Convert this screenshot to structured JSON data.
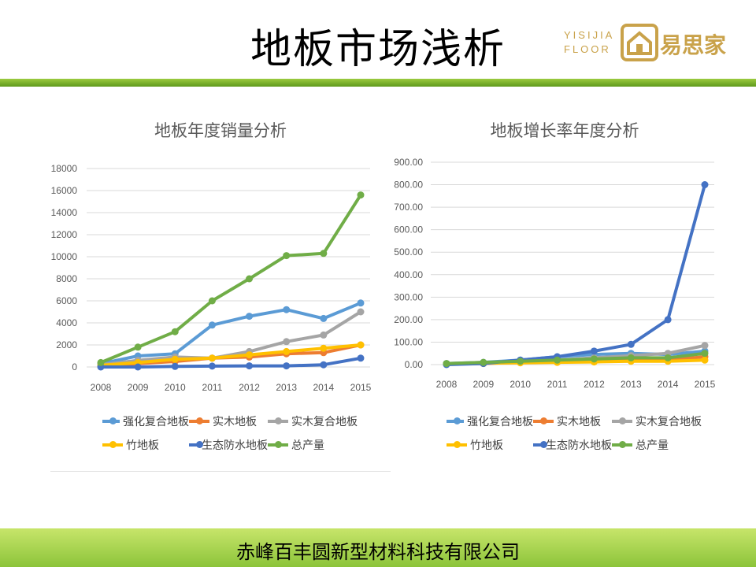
{
  "header": {
    "title": "地板市场浅析",
    "logo_en_line1": "YISIJIA",
    "logo_en_line2": "FLOOR",
    "logo_cn": "易思家"
  },
  "footer": {
    "company": "赤峰百丰圆新型材料科技有限公司"
  },
  "colors": {
    "accent_green": "#7ab22f",
    "logo_gold": "#c9a24a"
  },
  "chart_data": [
    {
      "type": "line",
      "title": "地板年度销量分析",
      "x": [
        "2008",
        "2009",
        "2010",
        "2011",
        "2012",
        "2013",
        "2014",
        "2015"
      ],
      "ylim": [
        0,
        18000
      ],
      "yticks": [
        "0",
        "2000",
        "4000",
        "6000",
        "8000",
        "10000",
        "12000",
        "14000",
        "16000",
        "18000"
      ],
      "legend_position": "bottom",
      "grid": true,
      "series": [
        {
          "name": "强化复合地板",
          "color": "#5b9bd5",
          "values": [
            300,
            1000,
            1200,
            3800,
            4600,
            5200,
            4400,
            5800
          ]
        },
        {
          "name": "实木地板",
          "color": "#ed7d31",
          "values": [
            100,
            300,
            500,
            800,
            900,
            1200,
            1300,
            2000
          ]
        },
        {
          "name": "实木复合地板",
          "color": "#a5a5a5",
          "values": [
            200,
            600,
            900,
            800,
            1400,
            2300,
            2900,
            5000
          ]
        },
        {
          "name": "竹地板",
          "color": "#ffc000",
          "values": [
            150,
            400,
            700,
            800,
            1100,
            1400,
            1700,
            2000
          ]
        },
        {
          "name": "生态防水地板",
          "color": "#4472c4",
          "values": [
            0,
            0,
            50,
            80,
            100,
            100,
            200,
            800
          ]
        },
        {
          "name": "总产量",
          "color": "#70ad47",
          "values": [
            400,
            1800,
            3200,
            6000,
            8000,
            10100,
            10300,
            15600
          ]
        }
      ]
    },
    {
      "type": "line",
      "title": "地板增长率年度分析",
      "x": [
        "2008",
        "2009",
        "2010",
        "2011",
        "2012",
        "2013",
        "2014",
        "2015"
      ],
      "ylim": [
        0,
        900
      ],
      "yticks": [
        "0.00",
        "100.00",
        "200.00",
        "300.00",
        "400.00",
        "500.00",
        "600.00",
        "700.00",
        "800.00",
        "900.00"
      ],
      "legend_position": "bottom",
      "grid": true,
      "series": [
        {
          "name": "强化复合地板",
          "color": "#5b9bd5",
          "values": [
            5,
            10,
            20,
            35,
            45,
            50,
            45,
            60
          ]
        },
        {
          "name": "实木地板",
          "color": "#ed7d31",
          "values": [
            3,
            5,
            10,
            12,
            15,
            20,
            20,
            35
          ]
        },
        {
          "name": "实木复合地板",
          "color": "#a5a5a5",
          "values": [
            4,
            8,
            15,
            20,
            30,
            40,
            50,
            85
          ]
        },
        {
          "name": "竹地板",
          "color": "#ffc000",
          "values": [
            3,
            6,
            8,
            10,
            12,
            15,
            15,
            20
          ]
        },
        {
          "name": "生态防水地板",
          "color": "#4472c4",
          "values": [
            0,
            5,
            20,
            35,
            60,
            90,
            200,
            800
          ]
        },
        {
          "name": "总产量",
          "color": "#70ad47",
          "values": [
            5,
            10,
            15,
            20,
            25,
            30,
            30,
            50
          ]
        }
      ]
    }
  ]
}
